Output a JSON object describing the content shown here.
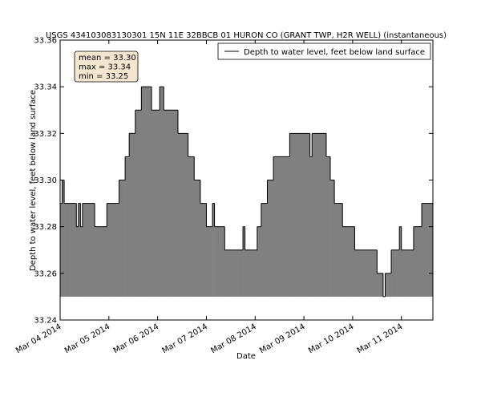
{
  "chart_data": {
    "type": "step-area",
    "title": "USGS 434103083130301 15N 11E 32BBCB 01 HURON CO (GRANT TWP, H2R WELL) (instantaneous)",
    "xlabel": "Date",
    "ylabel": "Depth to water level, feet below land surface",
    "annotation": [
      "mean = 33.30",
      "max = 33.34",
      "min = 33.25"
    ],
    "legend_position": "upper right",
    "x": [
      "2014-03-04T00:00",
      "2014-03-04T01:00",
      "2014-03-04T02:00",
      "2014-03-04T08:00",
      "2014-03-04T09:00",
      "2014-03-04T10:00",
      "2014-03-04T11:00",
      "2014-03-04T17:00",
      "2014-03-04T23:00",
      "2014-03-05T05:00",
      "2014-03-05T08:00",
      "2014-03-05T10:00",
      "2014-03-05T13:00",
      "2014-03-05T16:00",
      "2014-03-05T21:00",
      "2014-03-06T01:00",
      "2014-03-06T03:00",
      "2014-03-06T10:00",
      "2014-03-06T15:00",
      "2014-03-06T18:00",
      "2014-03-06T21:00",
      "2014-03-07T00:00",
      "2014-03-07T03:00",
      "2014-03-07T04:00",
      "2014-03-07T09:00",
      "2014-03-07T18:00",
      "2014-03-07T19:00",
      "2014-03-08T01:00",
      "2014-03-08T03:00",
      "2014-03-08T06:00",
      "2014-03-08T09:00",
      "2014-03-08T17:00",
      "2014-03-09T03:00",
      "2014-03-09T04:00",
      "2014-03-09T11:00",
      "2014-03-09T13:00",
      "2014-03-09T15:00",
      "2014-03-09T19:00",
      "2014-03-10T01:00",
      "2014-03-10T12:00",
      "2014-03-10T15:00",
      "2014-03-10T16:00",
      "2014-03-10T19:00",
      "2014-03-10T23:00",
      "2014-03-11T00:00",
      "2014-03-11T06:00",
      "2014-03-11T10:00"
    ],
    "series": [
      {
        "name": "Depth to water level, feet below land surface",
        "color": "#000000",
        "fill": "#808080",
        "values": [
          33.29,
          33.3,
          33.29,
          33.28,
          33.29,
          33.28,
          33.29,
          33.28,
          33.29,
          33.3,
          33.31,
          33.32,
          33.33,
          33.34,
          33.33,
          33.34,
          33.33,
          33.32,
          33.31,
          33.3,
          33.29,
          33.28,
          33.29,
          33.28,
          33.27,
          33.28,
          33.27,
          33.28,
          33.29,
          33.3,
          33.31,
          33.32,
          33.31,
          33.32,
          33.31,
          33.3,
          33.29,
          33.28,
          33.27,
          33.26,
          33.25,
          33.26,
          33.27,
          33.28,
          33.27,
          33.28,
          33.29
        ]
      }
    ],
    "xlim": [
      "2014-03-04T00:00",
      "2014-03-11T15:30"
    ],
    "xticks": [
      {
        "value": "2014-03-04T00:00",
        "label": "Mar 04 2014"
      },
      {
        "value": "2014-03-05T00:00",
        "label": "Mar 05 2014"
      },
      {
        "value": "2014-03-06T00:00",
        "label": "Mar 06 2014"
      },
      {
        "value": "2014-03-07T00:00",
        "label": "Mar 07 2014"
      },
      {
        "value": "2014-03-08T00:00",
        "label": "Mar 08 2014"
      },
      {
        "value": "2014-03-09T00:00",
        "label": "Mar 09 2014"
      },
      {
        "value": "2014-03-10T00:00",
        "label": "Mar 10 2014"
      },
      {
        "value": "2014-03-11T00:00",
        "label": "Mar 11 2014"
      }
    ],
    "ylim": [
      33.24,
      33.36
    ],
    "yticks": [
      {
        "value": 33.24,
        "label": "33.24"
      },
      {
        "value": 33.26,
        "label": "33.26"
      },
      {
        "value": 33.28,
        "label": "33.28"
      },
      {
        "value": 33.3,
        "label": "33.30"
      },
      {
        "value": 33.32,
        "label": "33.32"
      },
      {
        "value": 33.34,
        "label": "33.34"
      },
      {
        "value": 33.36,
        "label": "33.36"
      }
    ]
  }
}
